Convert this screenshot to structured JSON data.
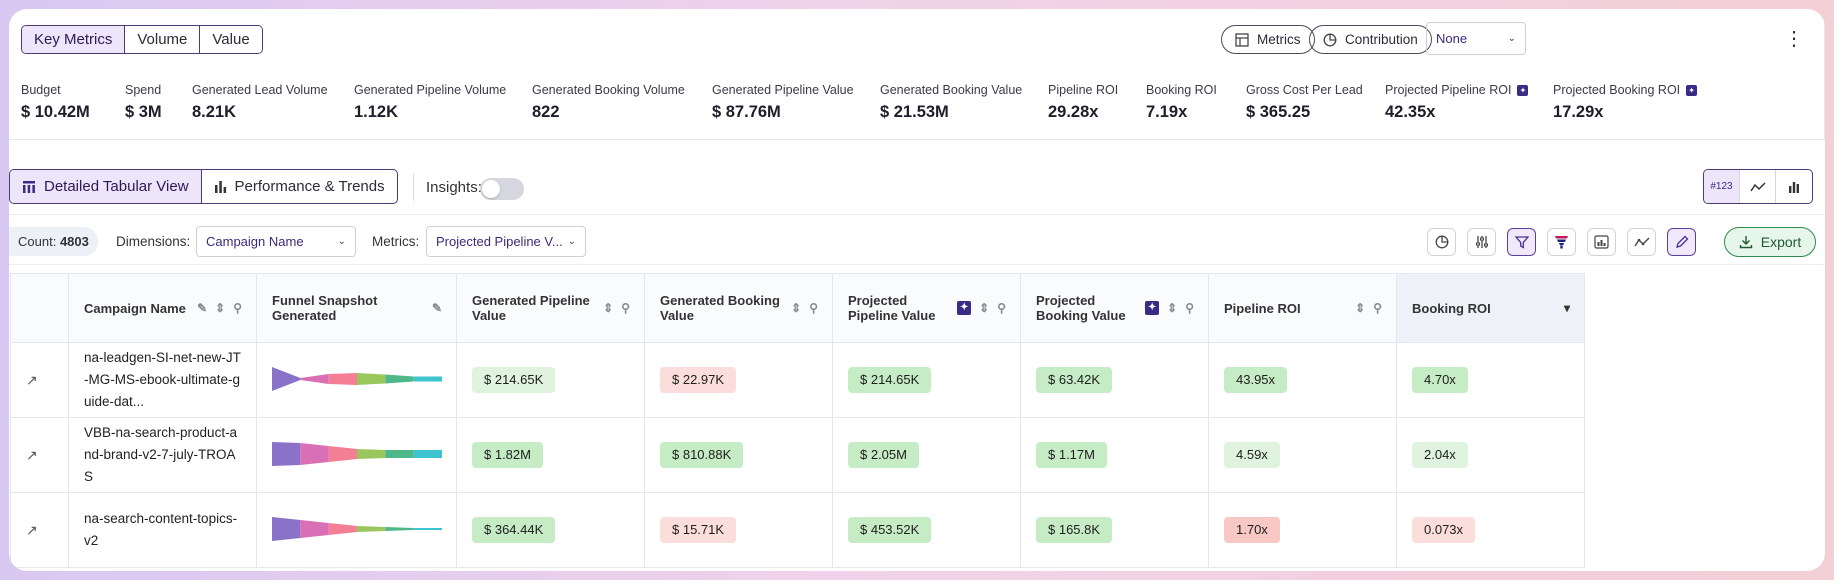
{
  "tabs": [
    "Key Metrics",
    "Volume",
    "Value"
  ],
  "header_buttons": {
    "metrics": "Metrics",
    "contribution": "Contribution",
    "none_select": "None"
  },
  "metrics": [
    {
      "label": "Budget",
      "value": "$ 10.42M"
    },
    {
      "label": "Spend",
      "value": "$ 3M"
    },
    {
      "label": "Generated Lead Volume",
      "value": "8.21K"
    },
    {
      "label": "Generated Pipeline Volume",
      "value": "1.12K"
    },
    {
      "label": "Generated Booking Volume",
      "value": "822"
    },
    {
      "label": "Generated Pipeline Value",
      "value": "$ 87.76M"
    },
    {
      "label": "Generated Booking Value",
      "value": "$ 21.53M"
    },
    {
      "label": "Pipeline ROI",
      "value": "29.28x"
    },
    {
      "label": "Booking ROI",
      "value": "7.19x"
    },
    {
      "label": "Gross Cost Per Lead",
      "value": "$ 365.25"
    },
    {
      "label": "Projected Pipeline ROI",
      "value": "42.35x"
    },
    {
      "label": "Projected Booking ROI",
      "value": "17.29x"
    }
  ],
  "view": {
    "detailed": "Detailed Tabular View",
    "performance": "Performance & Trends",
    "insights": "Insights:",
    "number_format": "#123"
  },
  "toolbar": {
    "count_label": "Count:",
    "count": "4803",
    "dimensions_label": "Dimensions:",
    "dimensions_value": "Campaign Name",
    "metrics_label": "Metrics:",
    "metrics_value": "Projected Pipeline V...",
    "export": "Export"
  },
  "table": {
    "headers": [
      "Campaign Name",
      "Funnel Snapshot Generated",
      "Generated Pipeline Value",
      "Generated Booking Value",
      "Projected Pipeline Value",
      "Projected Booking Value",
      "Pipeline ROI",
      "Booking ROI"
    ],
    "rows": [
      {
        "name": "na-leadgen-SI-net-new-JT-MG-MS-ebook-ultimate-guide-dat...",
        "gpv": "$ 214.65K",
        "gbv": "$ 22.97K",
        "ppv": "$ 214.65K",
        "pbv": "$ 63.42K",
        "proi": "43.95x",
        "broi": "4.70x"
      },
      {
        "name": "VBB-na-search-product-and-brand-v2-7-july-TROAS",
        "gpv": "$ 1.82M",
        "gbv": "$ 810.88K",
        "ppv": "$ 2.05M",
        "pbv": "$ 1.17M",
        "proi": "4.59x",
        "broi": "2.04x"
      },
      {
        "name": "na-search-content-topics-v2",
        "gpv": "$ 364.44K",
        "gbv": "$ 15.71K",
        "ppv": "$ 453.52K",
        "pbv": "$ 165.8K",
        "proi": "1.70x",
        "broi": "0.073x"
      }
    ]
  },
  "colors": {
    "accent": "#3b2a86",
    "funnel": [
      "#8b72c9",
      "#d96fb4",
      "#f47e95",
      "#9ac75c",
      "#4fb88a",
      "#3ec4cf"
    ]
  }
}
